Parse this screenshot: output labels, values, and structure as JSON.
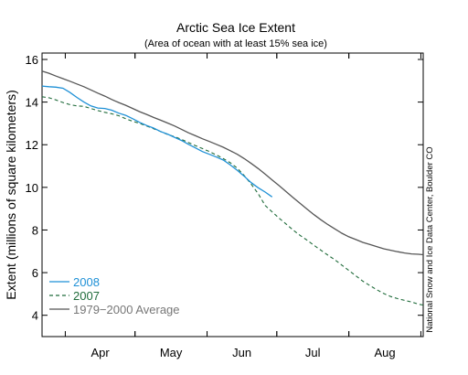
{
  "chart_data": {
    "type": "line",
    "title": "Arctic Sea Ice Extent",
    "subtitle": "(Area of ocean with at least 15% sea ice)",
    "ylabel": "Extent (millions of square kilometers)",
    "xlabel": "",
    "ylim": [
      3,
      16.3
    ],
    "yticks": [
      4,
      6,
      8,
      10,
      12,
      14,
      16
    ],
    "x_unit": "day of year",
    "xlim": [
      81,
      245
    ],
    "month_ticks": [
      {
        "label": "Apr",
        "start": 91,
        "end": 121
      },
      {
        "label": "May",
        "start": 121,
        "end": 152
      },
      {
        "label": "Jun",
        "start": 152,
        "end": 182
      },
      {
        "label": "Jul",
        "start": 182,
        "end": 213
      },
      {
        "label": "Aug",
        "start": 213,
        "end": 244
      }
    ],
    "credit": "National Snow and Ice Data Center, Boulder CO",
    "grid": false,
    "legend_position": "bottom-left",
    "series": [
      {
        "name": "2008",
        "style": "solid",
        "color": "#1e90d6",
        "x": [
          81,
          84,
          87,
          90,
          93,
          96,
          99,
          102,
          105,
          108,
          111,
          114,
          117,
          120,
          123,
          126,
          129,
          132,
          135,
          138,
          141,
          144,
          147,
          150,
          153,
          156,
          159,
          162,
          165,
          168,
          171,
          174,
          177,
          180
        ],
        "y": [
          14.75,
          14.72,
          14.7,
          14.65,
          14.45,
          14.22,
          14.0,
          13.82,
          13.72,
          13.7,
          13.62,
          13.48,
          13.38,
          13.22,
          13.05,
          12.9,
          12.78,
          12.62,
          12.5,
          12.35,
          12.2,
          12.02,
          11.85,
          11.68,
          11.55,
          11.42,
          11.28,
          11.05,
          10.8,
          10.52,
          10.22,
          9.98,
          9.78,
          9.55
        ]
      },
      {
        "name": "2007",
        "style": "dashed",
        "color": "#1f6b3a",
        "x": [
          81,
          84,
          87,
          90,
          93,
          96,
          99,
          102,
          105,
          108,
          111,
          114,
          117,
          120,
          123,
          126,
          129,
          132,
          135,
          138,
          141,
          144,
          147,
          150,
          153,
          156,
          159,
          162,
          165,
          168,
          171,
          174,
          177,
          180,
          183,
          186,
          189,
          192,
          195,
          198,
          201,
          204,
          207,
          210,
          213,
          216,
          219,
          222,
          225,
          228,
          231,
          234,
          237,
          240,
          243,
          245
        ],
        "y": [
          14.25,
          14.2,
          14.1,
          13.98,
          13.88,
          13.82,
          13.8,
          13.7,
          13.6,
          13.52,
          13.45,
          13.36,
          13.22,
          13.1,
          13.0,
          12.88,
          12.75,
          12.62,
          12.48,
          12.38,
          12.25,
          12.1,
          11.96,
          11.82,
          11.68,
          11.52,
          11.35,
          11.15,
          10.9,
          10.55,
          10.15,
          9.7,
          9.15,
          8.85,
          8.55,
          8.28,
          8.0,
          7.75,
          7.52,
          7.28,
          7.05,
          6.82,
          6.6,
          6.35,
          6.1,
          5.85,
          5.6,
          5.4,
          5.2,
          5.02,
          4.88,
          4.78,
          4.7,
          4.62,
          4.52,
          4.48
        ]
      },
      {
        "name": "1979−2000 Average",
        "style": "solid",
        "color": "#555555",
        "x": [
          81,
          84,
          87,
          90,
          93,
          96,
          99,
          102,
          105,
          108,
          111,
          114,
          117,
          120,
          123,
          126,
          129,
          132,
          135,
          138,
          141,
          144,
          147,
          150,
          153,
          156,
          159,
          162,
          165,
          168,
          171,
          174,
          177,
          180,
          183,
          186,
          189,
          192,
          195,
          198,
          201,
          204,
          207,
          210,
          213,
          216,
          219,
          222,
          225,
          228,
          231,
          234,
          237,
          240,
          243,
          245
        ],
        "y": [
          15.45,
          15.35,
          15.22,
          15.1,
          14.98,
          14.85,
          14.72,
          14.57,
          14.42,
          14.28,
          14.12,
          13.98,
          13.85,
          13.7,
          13.55,
          13.42,
          13.28,
          13.15,
          13.02,
          12.88,
          12.72,
          12.56,
          12.42,
          12.28,
          12.15,
          12.02,
          11.88,
          11.72,
          11.55,
          11.35,
          11.12,
          10.88,
          10.62,
          10.35,
          10.08,
          9.8,
          9.52,
          9.25,
          8.98,
          8.72,
          8.48,
          8.25,
          8.05,
          7.85,
          7.68,
          7.55,
          7.42,
          7.32,
          7.22,
          7.12,
          7.05,
          6.98,
          6.92,
          6.88,
          6.86,
          6.84
        ]
      }
    ]
  }
}
